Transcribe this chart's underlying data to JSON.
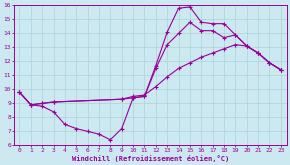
{
  "xlabel": "Windchill (Refroidissement éolien,°C)",
  "bg_color": "#cce8f0",
  "line_color": "#990099",
  "grid_color": "#aad4d4",
  "xlim": [
    -0.5,
    23.5
  ],
  "ylim": [
    6,
    16
  ],
  "xticks": [
    0,
    1,
    2,
    3,
    4,
    5,
    6,
    7,
    8,
    9,
    10,
    11,
    12,
    13,
    14,
    15,
    16,
    17,
    18,
    19,
    20,
    21,
    22,
    23
  ],
  "yticks": [
    6,
    7,
    8,
    9,
    10,
    11,
    12,
    13,
    14,
    15,
    16
  ],
  "line1_x": [
    0,
    1,
    2,
    3,
    4,
    5,
    6,
    7,
    8,
    9,
    10,
    11,
    12,
    13,
    14,
    15,
    16,
    17,
    18,
    19,
    20,
    21,
    22,
    23
  ],
  "line1_y": [
    9.8,
    8.9,
    8.8,
    8.4,
    7.5,
    7.2,
    7.0,
    6.8,
    6.4,
    7.2,
    9.4,
    9.5,
    11.7,
    14.1,
    15.8,
    15.9,
    14.8,
    14.7,
    14.7,
    13.9,
    13.1,
    12.6,
    11.9,
    11.4
  ],
  "line2_x": [
    0,
    1,
    2,
    3,
    9,
    10,
    11,
    12,
    13,
    14,
    15,
    16,
    17,
    18,
    19,
    20,
    21,
    22,
    23
  ],
  "line2_y": [
    9.8,
    8.9,
    9.0,
    9.1,
    9.3,
    9.4,
    9.5,
    11.5,
    13.2,
    14.0,
    14.8,
    14.2,
    14.2,
    13.7,
    13.9,
    13.1,
    12.6,
    11.9,
    11.4
  ],
  "line3_x": [
    0,
    1,
    2,
    3,
    9,
    10,
    11,
    12,
    13,
    14,
    15,
    16,
    17,
    18,
    19,
    20,
    21,
    22,
    23
  ],
  "line3_y": [
    9.8,
    8.9,
    9.0,
    9.1,
    9.3,
    9.5,
    9.6,
    10.2,
    10.9,
    11.5,
    11.9,
    12.3,
    12.6,
    12.9,
    13.2,
    13.1,
    12.6,
    11.9,
    11.4
  ]
}
